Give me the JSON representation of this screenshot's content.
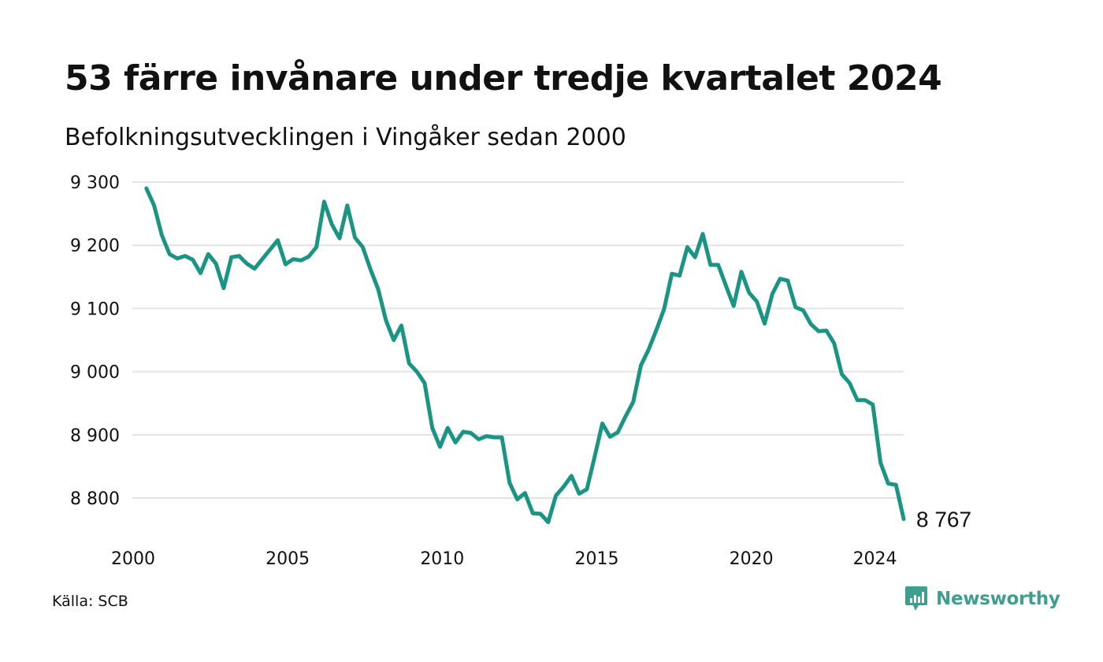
{
  "title": "53 färre invånare under tredje kvartalet 2024",
  "subtitle": "Befolkningsutvecklingen i Vingåker sedan 2000",
  "source": "Källa: SCB",
  "brand": {
    "name": "Newsworthy",
    "icon": "newsworthy-logo-icon",
    "color": "#3f9f8f"
  },
  "colors": {
    "line": "#1a9483",
    "grid": "#e3e3e3"
  },
  "chart_data": {
    "type": "line",
    "title": "53 färre invånare under tredje kvartalet 2024",
    "subtitle": "Befolkningsutvecklingen i Vingåker sedan 2000",
    "xlabel": "",
    "ylabel": "",
    "grid": "horizontal",
    "xlim": [
      2000,
      2024.75
    ],
    "ylim": [
      8750,
      9300
    ],
    "x_ticks": [
      {
        "value": 2000,
        "label": "2000"
      },
      {
        "value": 2005,
        "label": "2005"
      },
      {
        "value": 2010,
        "label": "2010"
      },
      {
        "value": 2015,
        "label": "2015"
      },
      {
        "value": 2020,
        "label": "2020"
      },
      {
        "value": 2024,
        "label": "2024"
      }
    ],
    "y_ticks": [
      {
        "value": 9300,
        "label": "9 300"
      },
      {
        "value": 9200,
        "label": "9 200"
      },
      {
        "value": 9100,
        "label": "9 100"
      },
      {
        "value": 9000,
        "label": "9 000"
      },
      {
        "value": 8900,
        "label": "8 900"
      },
      {
        "value": 8800,
        "label": "8 800"
      }
    ],
    "end_label": "8 767",
    "series": [
      {
        "name": "",
        "x": [
          2000.25,
          2000.5,
          2000.75,
          2001,
          2001.25,
          2001.5,
          2001.75,
          2002,
          2002.25,
          2002.5,
          2002.75,
          2003,
          2003.25,
          2003.5,
          2003.75,
          2004,
          2004.25,
          2004.5,
          2004.75,
          2005,
          2005.25,
          2005.5,
          2005.75,
          2006,
          2006.25,
          2006.5,
          2006.75,
          2007,
          2007.25,
          2007.5,
          2007.75,
          2008,
          2008.25,
          2008.5,
          2008.75,
          2009,
          2009.25,
          2009.5,
          2009.75,
          2010,
          2010.25,
          2010.5,
          2010.75,
          2011,
          2011.25,
          2011.5,
          2011.75,
          2012,
          2012.25,
          2012.5,
          2012.75,
          2013,
          2013.25,
          2013.5,
          2013.75,
          2014,
          2014.25,
          2014.5,
          2014.75,
          2015,
          2015.25,
          2015.5,
          2015.75,
          2016,
          2016.25,
          2016.5,
          2016.75,
          2017,
          2017.25,
          2017.5,
          2017.75,
          2018,
          2018.25,
          2018.5,
          2018.75,
          2019,
          2019.25,
          2019.5,
          2019.75,
          2020,
          2020.25,
          2020.5,
          2020.75,
          2021,
          2021.25,
          2021.5,
          2021.75,
          2022,
          2022.25,
          2022.5,
          2022.75,
          2023,
          2023.25,
          2023.5,
          2023.75,
          2024,
          2024.25,
          2024.5,
          2024.75
        ],
        "y": [
          9290,
          9263,
          9216,
          9186,
          9179,
          9183,
          9177,
          9156,
          9186,
          9171,
          9132,
          9181,
          9183,
          9171,
          9163,
          9178,
          9193,
          9208,
          9170,
          9178,
          9176,
          9182,
          9197,
          9269,
          9233,
          9211,
          9263,
          9212,
          9197,
          9162,
          9130,
          9081,
          9050,
          9073,
          9013,
          9000,
          8982,
          8911,
          8881,
          8911,
          8888,
          8905,
          8903,
          8893,
          8898,
          8896,
          8896,
          8824,
          8798,
          8808,
          8776,
          8775,
          8762,
          8804,
          8818,
          8835,
          8807,
          8814,
          8865,
          8918,
          8897,
          8904,
          8929,
          8952,
          9010,
          9035,
          9066,
          9099,
          9155,
          9152,
          9197,
          9181,
          9218,
          9169,
          9169,
          9136,
          9104,
          9158,
          9125,
          9111,
          9076,
          9123,
          9147,
          9144,
          9102,
          9097,
          9075,
          9064,
          9065,
          9045,
          8996,
          8982,
          8955,
          8955,
          8948,
          8856,
          8823,
          8821,
          8767
        ]
      }
    ]
  }
}
